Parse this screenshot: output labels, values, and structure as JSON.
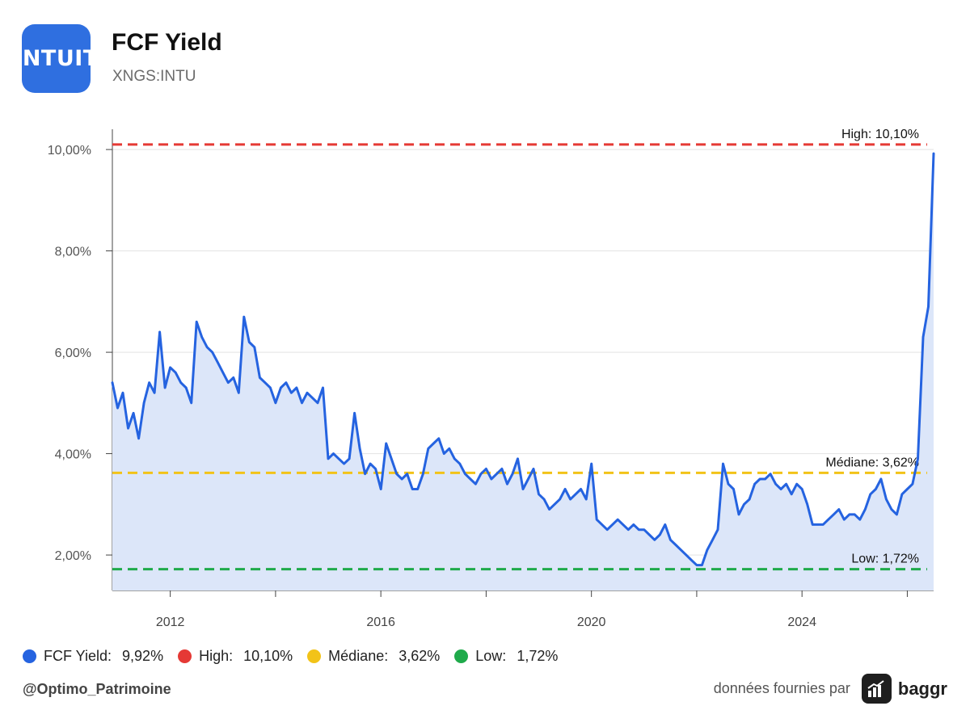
{
  "header": {
    "logo_text": "INTUIT",
    "title": "FCF Yield",
    "subtitle": "XNGS:INTU"
  },
  "colors": {
    "series": "#2563e0",
    "area": "#dce6f9",
    "high": "#e53935",
    "median": "#f2c318",
    "low": "#1faa4b",
    "logo_bg": "#2f6fe0"
  },
  "chart_data": {
    "type": "line",
    "title": "FCF Yield",
    "ylim": [
      1.3,
      10.4
    ],
    "xlim": [
      2010.9,
      2026.5
    ],
    "grid": true,
    "legend_position": "bottom-left",
    "y_ticks": [
      {
        "value": 2,
        "label": "2,00%"
      },
      {
        "value": 4,
        "label": "4,00%"
      },
      {
        "value": 6,
        "label": "6,00%"
      },
      {
        "value": 8,
        "label": "8,00%"
      },
      {
        "value": 10,
        "label": "10,00%"
      }
    ],
    "x_ticks": [
      {
        "value": 2012,
        "label": "2012"
      },
      {
        "value": 2016,
        "label": "2016"
      },
      {
        "value": 2020,
        "label": "2020"
      },
      {
        "value": 2024,
        "label": "2024"
      }
    ],
    "x_minor_ticks": [
      2014,
      2018,
      2022,
      2026
    ],
    "series": [
      {
        "name": "FCF Yield",
        "x": [
          2010.9,
          2011.0,
          2011.1,
          2011.2,
          2011.3,
          2011.4,
          2011.5,
          2011.6,
          2011.7,
          2011.8,
          2011.9,
          2012.0,
          2012.1,
          2012.2,
          2012.3,
          2012.4,
          2012.5,
          2012.6,
          2012.7,
          2012.8,
          2012.9,
          2013.0,
          2013.1,
          2013.2,
          2013.3,
          2013.4,
          2013.5,
          2013.6,
          2013.7,
          2013.8,
          2013.9,
          2014.0,
          2014.1,
          2014.2,
          2014.3,
          2014.4,
          2014.5,
          2014.6,
          2014.7,
          2014.8,
          2014.9,
          2015.0,
          2015.1,
          2015.2,
          2015.3,
          2015.4,
          2015.5,
          2015.6,
          2015.7,
          2015.8,
          2015.9,
          2016.0,
          2016.1,
          2016.2,
          2016.3,
          2016.4,
          2016.5,
          2016.6,
          2016.7,
          2016.8,
          2016.9,
          2017.0,
          2017.1,
          2017.2,
          2017.3,
          2017.4,
          2017.5,
          2017.6,
          2017.7,
          2017.8,
          2017.9,
          2018.0,
          2018.1,
          2018.2,
          2018.3,
          2018.4,
          2018.5,
          2018.6,
          2018.7,
          2018.8,
          2018.9,
          2019.0,
          2019.1,
          2019.2,
          2019.3,
          2019.4,
          2019.5,
          2019.6,
          2019.7,
          2019.8,
          2019.9,
          2020.0,
          2020.1,
          2020.2,
          2020.3,
          2020.4,
          2020.5,
          2020.6,
          2020.7,
          2020.8,
          2020.9,
          2021.0,
          2021.1,
          2021.2,
          2021.3,
          2021.4,
          2021.5,
          2021.6,
          2021.7,
          2021.8,
          2021.9,
          2022.0,
          2022.1,
          2022.2,
          2022.3,
          2022.4,
          2022.5,
          2022.6,
          2022.7,
          2022.8,
          2022.9,
          2023.0,
          2023.1,
          2023.2,
          2023.3,
          2023.4,
          2023.5,
          2023.6,
          2023.7,
          2023.8,
          2023.9,
          2024.0,
          2024.1,
          2024.2,
          2024.3,
          2024.4,
          2024.5,
          2024.6,
          2024.7,
          2024.8,
          2024.9,
          2025.0,
          2025.1,
          2025.2,
          2025.3,
          2025.4,
          2025.5,
          2025.6,
          2025.7,
          2025.8,
          2025.9,
          2026.0,
          2026.1,
          2026.2,
          2026.3,
          2026.4,
          2026.5
        ],
        "values": [
          5.4,
          4.9,
          5.2,
          4.5,
          4.8,
          4.3,
          5.0,
          5.4,
          5.2,
          6.4,
          5.3,
          5.7,
          5.6,
          5.4,
          5.3,
          5.0,
          6.6,
          6.3,
          6.1,
          6.0,
          5.8,
          5.6,
          5.4,
          5.5,
          5.2,
          6.7,
          6.2,
          6.1,
          5.5,
          5.4,
          5.3,
          5.0,
          5.3,
          5.4,
          5.2,
          5.3,
          5.0,
          5.2,
          5.1,
          5.0,
          5.3,
          3.9,
          4.0,
          3.9,
          3.8,
          3.9,
          4.8,
          4.1,
          3.6,
          3.8,
          3.7,
          3.3,
          4.2,
          3.9,
          3.6,
          3.5,
          3.6,
          3.3,
          3.3,
          3.6,
          4.1,
          4.2,
          4.3,
          4.0,
          4.1,
          3.9,
          3.8,
          3.6,
          3.5,
          3.4,
          3.6,
          3.7,
          3.5,
          3.6,
          3.7,
          3.4,
          3.6,
          3.9,
          3.3,
          3.5,
          3.7,
          3.2,
          3.1,
          2.9,
          3.0,
          3.1,
          3.3,
          3.1,
          3.2,
          3.3,
          3.1,
          3.8,
          2.7,
          2.6,
          2.5,
          2.6,
          2.7,
          2.6,
          2.5,
          2.6,
          2.5,
          2.5,
          2.4,
          2.3,
          2.4,
          2.6,
          2.3,
          2.2,
          2.1,
          2.0,
          1.9,
          1.8,
          1.8,
          2.1,
          2.3,
          2.5,
          3.8,
          3.4,
          3.3,
          2.8,
          3.0,
          3.1,
          3.4,
          3.5,
          3.5,
          3.6,
          3.4,
          3.3,
          3.4,
          3.2,
          3.4,
          3.3,
          3.0,
          2.6,
          2.6,
          2.6,
          2.7,
          2.8,
          2.9,
          2.7,
          2.8,
          2.8,
          2.7,
          2.9,
          3.2,
          3.3,
          3.5,
          3.1,
          2.9,
          2.8,
          3.2,
          3.3,
          3.4,
          3.9,
          6.3,
          6.9,
          9.92
        ]
      }
    ],
    "reference_lines": [
      {
        "key": "high",
        "value": 10.1,
        "label": "High: 10,10%"
      },
      {
        "key": "median",
        "value": 3.62,
        "label": "Médiane: 3,62%"
      },
      {
        "key": "low",
        "value": 1.72,
        "label": "Low: 1,72%"
      }
    ]
  },
  "legend": [
    {
      "label": "FCF Yield:",
      "value": "9,92%",
      "color": "#2563e0"
    },
    {
      "label": "High:",
      "value": "10,10%",
      "color": "#e53935"
    },
    {
      "label": "Médiane:",
      "value": "3,62%",
      "color": "#f2c318"
    },
    {
      "label": "Low:",
      "value": "1,72%",
      "color": "#1faa4b"
    }
  ],
  "footer": {
    "handle": "@Optimo_Patrimoine",
    "credit": "données fournies par",
    "brand": "baggr"
  }
}
